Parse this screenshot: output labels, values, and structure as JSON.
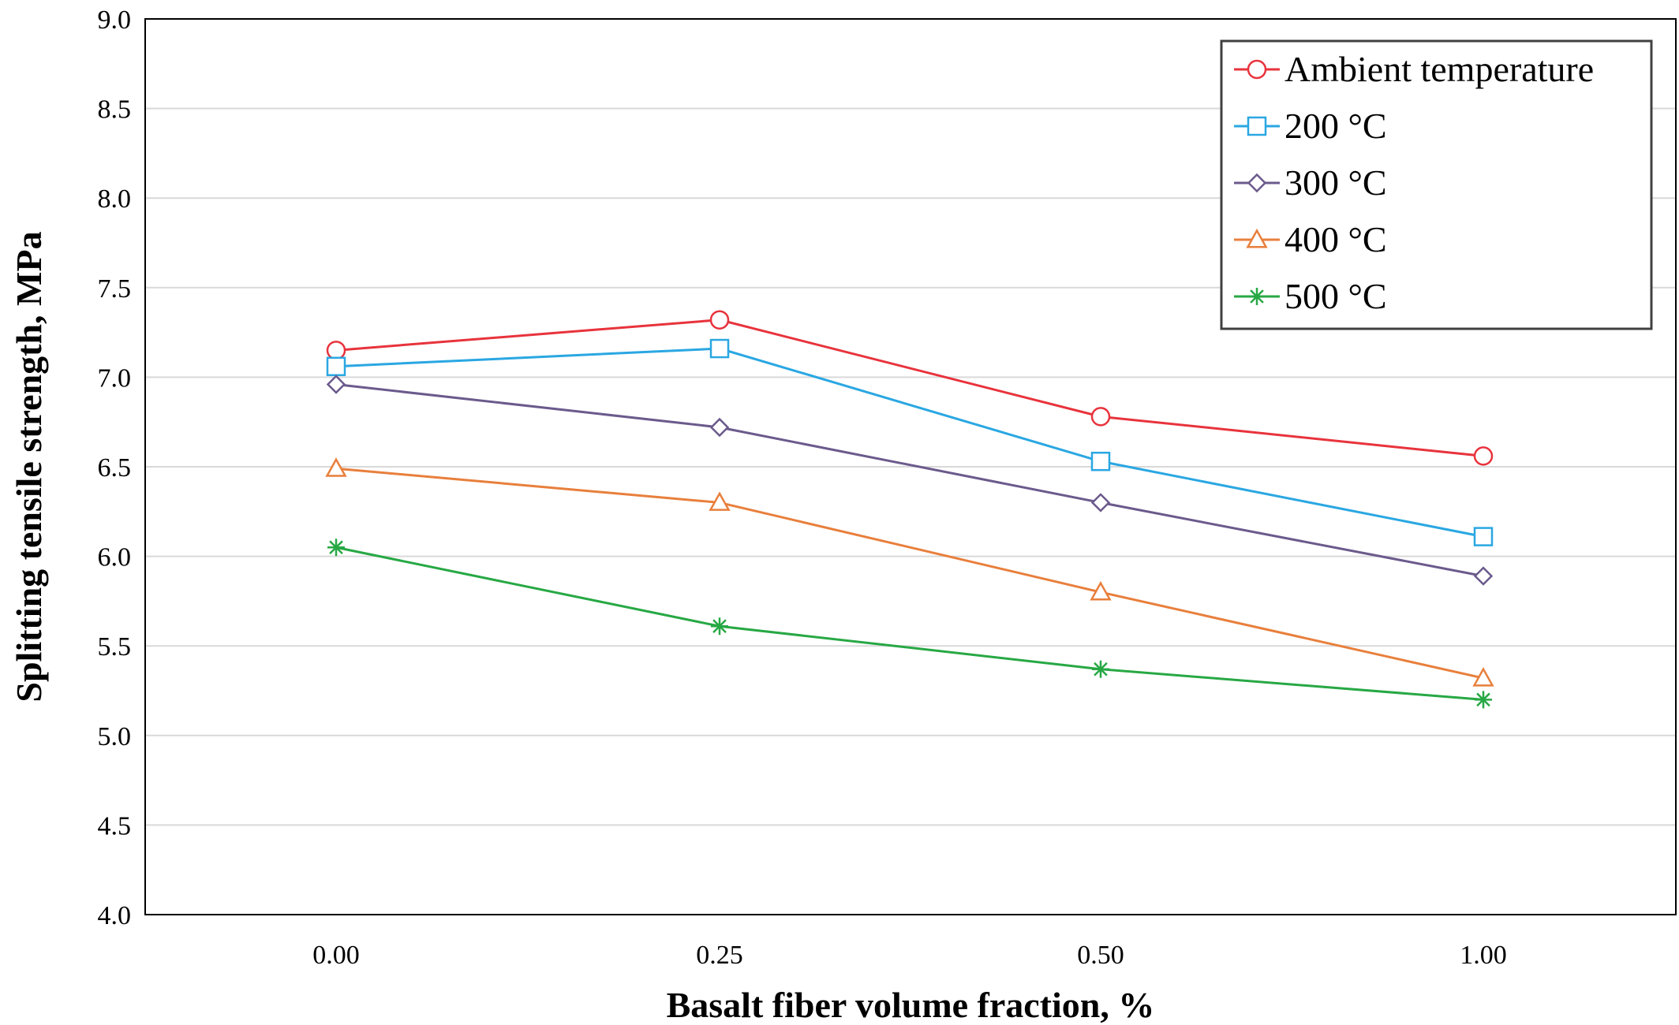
{
  "chart_data": {
    "type": "line",
    "title": "",
    "xlabel": "Basalt fiber volume fraction, %",
    "ylabel": "Splitting tensile strength, MPa",
    "categories": [
      "0.00",
      "0.25",
      "0.50",
      "1.00"
    ],
    "ylim": [
      4.0,
      9.0
    ],
    "yticks": [
      "4.0",
      "4.5",
      "5.0",
      "5.5",
      "6.0",
      "6.5",
      "7.0",
      "7.5",
      "8.0",
      "8.5",
      "9.0"
    ],
    "grid": "horizontal",
    "legend_position": "top-right",
    "series": [
      {
        "name": "Ambient temperature",
        "values": [
          7.15,
          7.32,
          6.78,
          6.56
        ],
        "color": "#e8333c",
        "marker": "circle"
      },
      {
        "name": "200 °C",
        "values": [
          7.06,
          7.16,
          6.53,
          6.11
        ],
        "color": "#2aa7e2",
        "marker": "square"
      },
      {
        "name": "300 °C",
        "values": [
          6.96,
          6.72,
          6.3,
          5.89
        ],
        "color": "#6b5a8c",
        "marker": "diamond"
      },
      {
        "name": "400 °C",
        "values": [
          6.49,
          6.3,
          5.8,
          5.32
        ],
        "color": "#e87f3c",
        "marker": "triangle"
      },
      {
        "name": "500 °C",
        "values": [
          6.05,
          5.61,
          5.37,
          5.2
        ],
        "color": "#27a844",
        "marker": "asterisk"
      }
    ]
  }
}
